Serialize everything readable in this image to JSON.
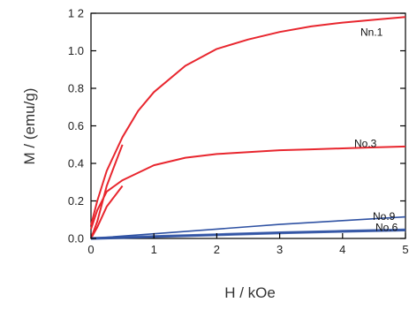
{
  "chart_data": {
    "type": "line",
    "title": "",
    "xlabel": "H / kOe",
    "ylabel": "M / (emu/g)",
    "xlim": [
      0,
      5
    ],
    "ylim": [
      0,
      1.2
    ],
    "x_ticks": [
      "0",
      "1",
      "2",
      "3",
      "4",
      "5"
    ],
    "y_ticks": [
      "0.0",
      "0.2",
      "0.4",
      "0.6",
      "0.8",
      "1.0",
      "1 2"
    ],
    "grid": false,
    "legend": "none",
    "series": [
      {
        "name": "No.1",
        "label_text": "Nn.1",
        "color": "#e8262e",
        "x": [
          0,
          0.1,
          0.25,
          0.5,
          0.75,
          1.0,
          1.5,
          2.0,
          2.5,
          3.0,
          3.5,
          4.0,
          4.5,
          5.0
        ],
        "y": [
          0.07,
          0.2,
          0.36,
          0.54,
          0.68,
          0.78,
          0.92,
          1.01,
          1.06,
          1.1,
          1.13,
          1.15,
          1.165,
          1.18
        ],
        "branch_x": [
          0,
          0.1,
          0.25,
          0.5
        ],
        "branch_y": [
          0.0,
          0.09,
          0.28,
          0.5
        ]
      },
      {
        "name": "No.3",
        "label_text": "No.3",
        "color": "#e8262e",
        "x": [
          0,
          0.1,
          0.25,
          0.5,
          0.75,
          1.0,
          1.5,
          2.0,
          2.5,
          3.0,
          3.5,
          4.0,
          4.5,
          5.0
        ],
        "y": [
          0.05,
          0.15,
          0.25,
          0.31,
          0.35,
          0.39,
          0.43,
          0.45,
          0.46,
          0.47,
          0.475,
          0.48,
          0.485,
          0.49
        ],
        "branch_x": [
          0,
          0.1,
          0.25,
          0.5
        ],
        "branch_y": [
          0.0,
          0.06,
          0.17,
          0.28
        ]
      },
      {
        "name": "No.9",
        "label_text": "No.9",
        "color": "#2f52a3",
        "x": [
          0,
          1,
          2,
          3,
          4,
          5
        ],
        "y": [
          0.0,
          0.025,
          0.05,
          0.075,
          0.095,
          0.115
        ]
      },
      {
        "name": "No.6",
        "label_text": "No.6",
        "color": "#2f52a3",
        "x": [
          0,
          1,
          2,
          3,
          4,
          5
        ],
        "y": [
          0.0,
          0.01,
          0.02,
          0.03,
          0.038,
          0.045
        ]
      }
    ]
  }
}
